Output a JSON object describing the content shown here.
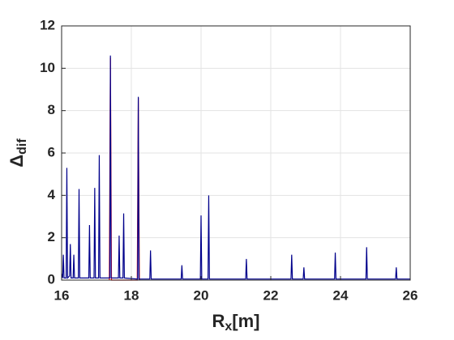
{
  "chart_data": {
    "type": "line",
    "ylabel": {
      "main": "Δ",
      "sub": "dif"
    },
    "xlabel": {
      "main": "R",
      "sub": "x",
      "unit": "[m]"
    },
    "series": [
      {
        "color": "#ff0000",
        "x": [
          17.37,
          17.4,
          17.43,
          18.17,
          18.2,
          18.23
        ],
        "values": [
          0,
          10.5,
          0,
          0,
          8.6,
          0
        ]
      },
      {
        "color": "#00008b",
        "x": [
          16,
          16.03,
          16.05,
          16.07,
          16.13,
          16.15,
          16.17,
          16.23,
          16.25,
          16.27,
          16.33,
          16.35,
          16.37,
          16.48,
          16.5,
          16.52,
          16.78,
          16.8,
          16.82,
          16.93,
          16.95,
          16.97,
          17.06,
          17.08,
          17.1,
          17.38,
          17.4,
          17.42,
          17.63,
          17.65,
          17.67,
          17.76,
          17.78,
          17.8,
          18.18,
          18.2,
          18.22,
          18.53,
          18.55,
          18.57,
          19.43,
          19.45,
          19.47,
          19.98,
          20,
          20.02,
          20.2,
          20.22,
          20.24,
          21.28,
          21.3,
          21.32,
          22.58,
          22.6,
          22.62,
          22.93,
          22.95,
          22.97,
          23.83,
          23.85,
          23.87,
          24.73,
          24.75,
          24.77,
          25.58,
          25.6,
          25.62,
          26
        ],
        "values": [
          0.3,
          0.1,
          1.2,
          0.1,
          0.1,
          5.3,
          0.1,
          0.2,
          1.7,
          0.1,
          0.1,
          1.2,
          0.1,
          0.1,
          4.3,
          0.1,
          0.1,
          2.6,
          0.1,
          0.1,
          4.35,
          0.1,
          0.1,
          5.9,
          0.1,
          0.1,
          10.6,
          0.1,
          0.1,
          2.1,
          0.1,
          0.1,
          3.15,
          0.1,
          0.05,
          8.65,
          0.05,
          0.05,
          1.4,
          0.05,
          0.05,
          0.7,
          0.05,
          0.05,
          3.05,
          0.05,
          0.05,
          4.0,
          0.05,
          0.05,
          1.0,
          0.05,
          0.05,
          1.2,
          0.05,
          0.05,
          0.6,
          0.05,
          0.05,
          1.3,
          0.05,
          0.05,
          1.55,
          0.05,
          0.05,
          0.6,
          0.05,
          0.05
        ]
      }
    ],
    "xlim": [
      16,
      26
    ],
    "xticks": [
      16,
      18,
      20,
      22,
      24,
      26
    ],
    "ylim": [
      0,
      12
    ],
    "yticks": [
      0,
      2,
      4,
      6,
      8,
      10,
      12
    ],
    "grid": true
  }
}
